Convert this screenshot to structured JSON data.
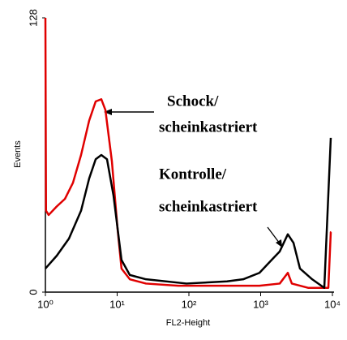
{
  "chart_data": {
    "type": "line",
    "xlabel": "FL2-Height",
    "ylabel": "Events",
    "xscale": "log",
    "xlim": [
      1,
      10000
    ],
    "ylim": [
      0,
      128
    ],
    "xticks": [
      {
        "value": 1,
        "label": "10⁰"
      },
      {
        "value": 10,
        "label": "10¹"
      },
      {
        "value": 100,
        "label": "10²"
      },
      {
        "value": 1000,
        "label": "10³"
      },
      {
        "value": 10000,
        "label": "10⁴"
      }
    ],
    "yticks": [
      0,
      128
    ],
    "series": [
      {
        "color": "#e00000",
        "x": [
          1,
          1.02,
          1.11,
          1.44,
          1.87,
          2.42,
          3.14,
          4.07,
          5.02,
          6.02,
          6.86,
          8.45,
          10.1,
          11.5,
          15,
          25.2,
          71,
          340,
          962,
          1845,
          2390,
          2720,
          4580,
          8780,
          9490,
          9600
        ],
        "values": [
          128,
          38,
          36,
          40,
          43.5,
          51,
          64,
          80,
          89,
          90,
          85,
          61,
          30,
          11,
          6,
          4,
          3,
          3,
          3,
          4,
          9,
          4,
          2,
          2,
          28,
          28
        ]
      },
      {
        "color": "#000000",
        "x": [
          1,
          1.44,
          2.13,
          3.14,
          4.07,
          5.02,
          6.02,
          7.22,
          8.9,
          11.5,
          15,
          25.2,
          92.5,
          340,
          571,
          962,
          1420,
          1845,
          2390,
          2870,
          3530,
          5220,
          7710,
          9490
        ],
        "values": [
          11,
          17,
          25,
          38,
          53,
          62,
          64,
          62,
          45,
          15,
          8,
          6,
          4,
          5,
          6,
          9,
          15,
          19,
          27,
          23,
          11,
          6,
          2,
          72
        ]
      }
    ],
    "annotations": [
      {
        "lines": [
          "Schock/",
          "scheinkastriert"
        ]
      },
      {
        "lines": [
          "Kontrolle/",
          "scheinkastriert"
        ]
      }
    ]
  }
}
